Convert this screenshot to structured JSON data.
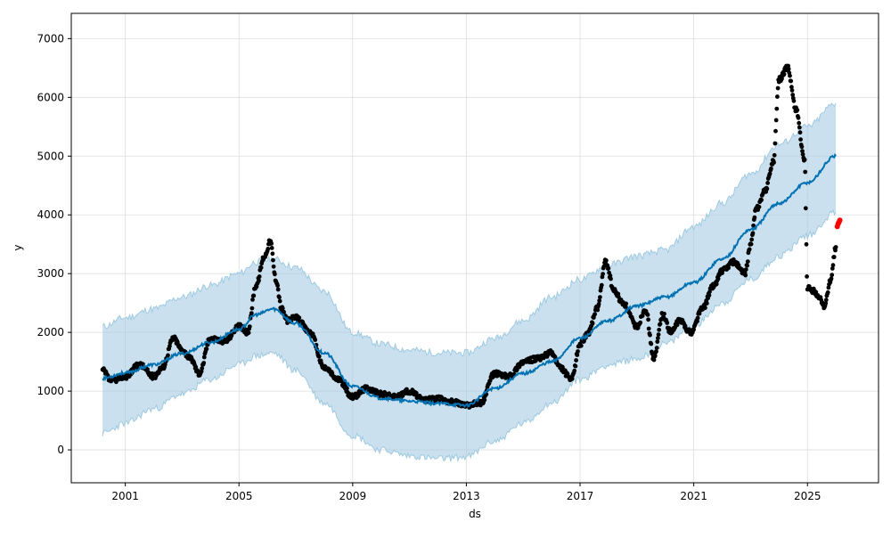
{
  "chart_data": {
    "type": "line",
    "title": "",
    "xlabel": "ds",
    "ylabel": "y",
    "x_ticks": [
      "2001",
      "2005",
      "2009",
      "2013",
      "2017",
      "2021",
      "2025"
    ],
    "y_ticks": [
      "0",
      "1000",
      "2000",
      "3000",
      "4000",
      "5000",
      "6000",
      "7000"
    ],
    "xlim": [
      1999.1,
      2027.5
    ],
    "ylim": [
      -560,
      7430
    ],
    "grid": true,
    "legend": "none",
    "colors": {
      "observed": "#000000",
      "forecast": "#0072B2",
      "interval_fill": "#a6cbe3",
      "interval_edge": "#9ecae1",
      "highlight": "#ff0000"
    },
    "series": [
      {
        "kind": "forecast_line",
        "x": [
          2000.2,
          2001.0,
          2002.0,
          2003.0,
          2004.0,
          2005.0,
          2005.6,
          2006.2,
          2007.0,
          2008.0,
          2009.0,
          2010.0,
          2011.0,
          2012.0,
          2013.0,
          2014.0,
          2015.0,
          2016.0,
          2017.0,
          2018.0,
          2019.0,
          2020.0,
          2021.0,
          2022.0,
          2023.0,
          2024.0,
          2025.0,
          2026.0
        ],
        "y": [
          1220,
          1310,
          1450,
          1640,
          1830,
          2050,
          2300,
          2400,
          2150,
          1650,
          1080,
          880,
          830,
          790,
          760,
          1050,
          1300,
          1500,
          1900,
          2200,
          2450,
          2600,
          2850,
          3250,
          3750,
          4200,
          4550,
          5000
        ]
      },
      {
        "kind": "interval_upper",
        "x": [
          2000.2,
          2001.0,
          2002.0,
          2003.0,
          2004.0,
          2005.0,
          2005.6,
          2006.2,
          2007.0,
          2008.0,
          2009.0,
          2010.0,
          2011.0,
          2012.0,
          2013.0,
          2014.0,
          2015.0,
          2016.0,
          2017.0,
          2018.0,
          2019.0,
          2020.0,
          2021.0,
          2022.0,
          2023.0,
          2024.0,
          2025.0,
          2026.0
        ],
        "y": [
          2100,
          2250,
          2400,
          2600,
          2800,
          3000,
          3200,
          3250,
          3100,
          2700,
          2000,
          1800,
          1700,
          1650,
          1650,
          1900,
          2200,
          2600,
          2900,
          3150,
          3300,
          3400,
          3800,
          4200,
          4700,
          5200,
          5500,
          5900
        ]
      },
      {
        "kind": "interval_lower",
        "x": [
          2000.2,
          2001.0,
          2002.0,
          2003.0,
          2004.0,
          2005.0,
          2005.6,
          2006.2,
          2007.0,
          2008.0,
          2009.0,
          2010.0,
          2011.0,
          2012.0,
          2013.0,
          2014.0,
          2015.0,
          2016.0,
          2017.0,
          2018.0,
          2019.0,
          2020.0,
          2021.0,
          2022.0,
          2023.0,
          2024.0,
          2025.0,
          2026.0
        ],
        "y": [
          280,
          450,
          700,
          950,
          1200,
          1450,
          1600,
          1650,
          1350,
          800,
          250,
          0,
          -100,
          -150,
          -120,
          150,
          450,
          800,
          1200,
          1450,
          1550,
          1800,
          2100,
          2500,
          2900,
          3300,
          3650,
          4050
        ]
      },
      {
        "kind": "observed_points",
        "x": [
          2000.2,
          2000.5,
          2001.0,
          2001.5,
          2002.0,
          2002.3,
          2002.7,
          2003.0,
          2003.3,
          2003.6,
          2004.0,
          2004.5,
          2005.0,
          2005.3,
          2005.6,
          2005.9,
          2006.1,
          2006.3,
          2006.5,
          2006.7,
          2007.0,
          2007.5,
          2008.0,
          2008.5,
          2009.0,
          2009.5,
          2010.0,
          2010.5,
          2011.0,
          2011.5,
          2012.0,
          2012.5,
          2013.0,
          2013.5,
          2014.0,
          2014.5,
          2015.0,
          2015.5,
          2016.0,
          2016.3,
          2016.7,
          2017.0,
          2017.3,
          2017.6,
          2017.9,
          2018.2,
          2018.5,
          2019.0,
          2019.3,
          2019.6,
          2019.9,
          2020.2,
          2020.5,
          2020.9,
          2021.3,
          2021.7,
          2022.0,
          2022.4,
          2022.8,
          2023.0,
          2023.2,
          2023.5,
          2023.8,
          2024.0,
          2024.3,
          2024.6,
          2024.9,
          2025.0,
          2025.2,
          2025.4,
          2025.6,
          2025.8,
          2026.0
        ],
        "y": [
          1350,
          1180,
          1250,
          1450,
          1250,
          1400,
          1900,
          1700,
          1550,
          1300,
          1900,
          1850,
          2100,
          2000,
          2800,
          3300,
          3550,
          2900,
          2400,
          2200,
          2250,
          2000,
          1400,
          1200,
          900,
          1050,
          950,
          900,
          1000,
          850,
          870,
          820,
          760,
          800,
          1300,
          1250,
          1500,
          1550,
          1650,
          1400,
          1200,
          1800,
          2000,
          2400,
          3200,
          2700,
          2500,
          2100,
          2400,
          1550,
          2300,
          2000,
          2200,
          2000,
          2400,
          2800,
          3050,
          3200,
          3000,
          3500,
          4100,
          4400,
          4900,
          6300,
          6500,
          5800,
          4900,
          2750,
          2700,
          2600,
          2450,
          2850,
          3450
        ]
      },
      {
        "kind": "highlight_points",
        "x": [
          2026.05,
          2026.08,
          2026.11,
          2026.14
        ],
        "y": [
          3800,
          3850,
          3880,
          3910
        ]
      }
    ]
  }
}
